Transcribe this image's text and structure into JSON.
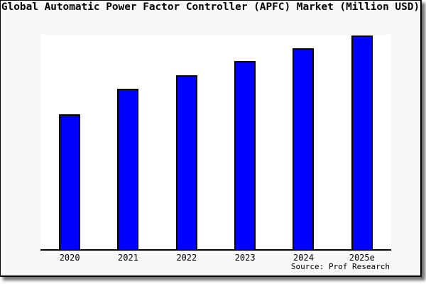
{
  "title": "Global Automatic Power Factor Controller (APFC) Market (Million USD)",
  "source": "Source: Prof Research",
  "colors": {
    "bar_fill": "#0000ff",
    "bar_border": "#000000",
    "figure_background": "#f8f8f8",
    "plot_background": "#ffffff",
    "frame_border": "#000000",
    "text": "#000000"
  },
  "chart_data": {
    "type": "bar",
    "title": "Global Automatic Power Factor Controller (APFC) Market (Million USD)",
    "categories": [
      "2020",
      "2021",
      "2022",
      "2023",
      "2024",
      "2025e"
    ],
    "values": [
      63,
      75,
      81.5,
      88,
      94,
      100
    ],
    "units": "relative index (no y-axis labels shown in image)",
    "xlabel": "",
    "ylabel": "",
    "ylim": [
      0,
      100.3
    ],
    "grid": false,
    "legend": false,
    "source": "Source: Prof Research"
  }
}
